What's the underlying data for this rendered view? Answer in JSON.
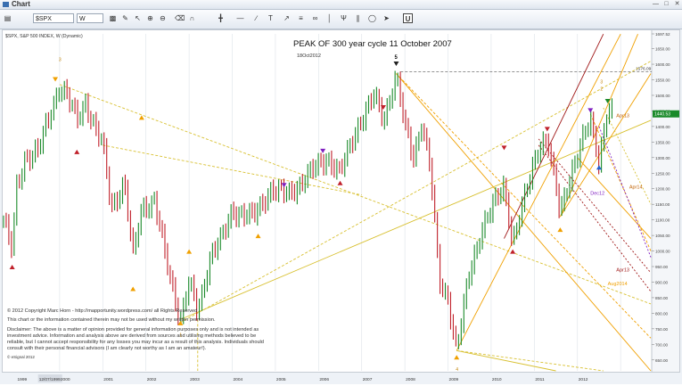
{
  "window": {
    "title": "Chart",
    "controls": [
      "minimize-icon",
      "maximize-icon",
      "close-icon"
    ]
  },
  "toolbar": {
    "symbol_value": "$SPX",
    "period_value": "W",
    "highlighted_tool": "U"
  },
  "chart_header": {
    "instrument": "$SPX, S&P 500 INDEX, W (Dynamic)",
    "headline": "PEAK OF 300 year cycle 11 October 2007",
    "subnote": "18Oct2012",
    "price_tag": "1440.53"
  },
  "axis_labels": {
    "peak_marker": "5",
    "resistance_level": "1576.09"
  },
  "wave_labels": [
    "3",
    "1",
    "4",
    "2",
    "3"
  ],
  "annotations": [
    "Apr13",
    "Dec12",
    "Apr14",
    "Apr13",
    "Aug2014"
  ],
  "info_text": {
    "copyright": "© 2012 Copyright Marc Horn - http://mapportunity.wordpress.com/ all Rights Reserved",
    "usage": "This chart or the information contained therein may not be used without my written permission.",
    "disclaimer": "Disclaimer: The above is a matter of opinion provided for general information purposes only and is not intended as investment advice. Information and analysis above are derived from sources and utilising methods believed to be reliable, but I cannot accept responsibility for any losses you may incur as a result of this analysis. Individuals should consult with their personal financial advisors (I am clearly not worthy as I am an amateur!).",
    "watermark": "© eSignal 2012"
  },
  "colors": {
    "up_candle": "#1a8a2a",
    "down_candle": "#c0202a",
    "fork_orange": "#f0a000",
    "fork_yellow": "#d8c030",
    "fork_darkred": "#a01818",
    "fork_purple": "#8020c0"
  },
  "chart_data": {
    "type": "line",
    "title": "PEAK OF 300 year cycle 11 October 2007",
    "x": [
      "1999",
      "2000",
      "2001",
      "2002",
      "2003",
      "2004",
      "2005",
      "2006",
      "2007",
      "2008",
      "2009",
      "2010",
      "2011",
      "2012"
    ],
    "x_tick_labels": [
      "1999",
      "12/07/1999",
      "2000",
      "2001",
      "2002",
      "2003",
      "2004",
      "2005",
      "2006",
      "2007",
      "2008",
      "2009",
      "2010",
      "2011",
      "2012"
    ],
    "y_tick_labels": [
      "650.00",
      "700.00",
      "750.00",
      "800.00",
      "850.00",
      "900.00",
      "950.00",
      "1000.00",
      "1050.00",
      "1100.00",
      "1150.00",
      "1200.00",
      "1250.00",
      "1300.00",
      "1350.00",
      "1400.00",
      "1450.00",
      "1500.00",
      "1550.00",
      "1600.00",
      "1650.00",
      "1697.52"
    ],
    "ylim": [
      615,
      1697.52
    ],
    "price_path": [
      {
        "x": 1998.7,
        "y": 1100
      },
      {
        "x": 1998.9,
        "y": 1000
      },
      {
        "x": 1999.0,
        "y": 1200
      },
      {
        "x": 1999.2,
        "y": 1300
      },
      {
        "x": 1999.5,
        "y": 1320
      },
      {
        "x": 1999.8,
        "y": 1450
      },
      {
        "x": 2000.0,
        "y": 1530
      },
      {
        "x": 2000.2,
        "y": 1490
      },
      {
        "x": 2000.4,
        "y": 1420
      },
      {
        "x": 2000.6,
        "y": 1480
      },
      {
        "x": 2000.8,
        "y": 1400
      },
      {
        "x": 2001.0,
        "y": 1340
      },
      {
        "x": 2001.2,
        "y": 1140
      },
      {
        "x": 2001.5,
        "y": 1220
      },
      {
        "x": 2001.7,
        "y": 980
      },
      {
        "x": 2001.9,
        "y": 1140
      },
      {
        "x": 2002.2,
        "y": 1160
      },
      {
        "x": 2002.5,
        "y": 950
      },
      {
        "x": 2002.8,
        "y": 780
      },
      {
        "x": 2003.0,
        "y": 900
      },
      {
        "x": 2003.2,
        "y": 800
      },
      {
        "x": 2003.5,
        "y": 990
      },
      {
        "x": 2003.8,
        "y": 1050
      },
      {
        "x": 2004.0,
        "y": 1130
      },
      {
        "x": 2004.5,
        "y": 1110
      },
      {
        "x": 2004.9,
        "y": 1200
      },
      {
        "x": 2005.3,
        "y": 1180
      },
      {
        "x": 2005.8,
        "y": 1250
      },
      {
        "x": 2006.2,
        "y": 1300
      },
      {
        "x": 2006.5,
        "y": 1250
      },
      {
        "x": 2006.9,
        "y": 1400
      },
      {
        "x": 2007.3,
        "y": 1500
      },
      {
        "x": 2007.5,
        "y": 1420
      },
      {
        "x": 2007.8,
        "y": 1565
      },
      {
        "x": 2008.0,
        "y": 1400
      },
      {
        "x": 2008.2,
        "y": 1300
      },
      {
        "x": 2008.4,
        "y": 1420
      },
      {
        "x": 2008.6,
        "y": 1250
      },
      {
        "x": 2008.8,
        "y": 900
      },
      {
        "x": 2009.0,
        "y": 850
      },
      {
        "x": 2009.2,
        "y": 680
      },
      {
        "x": 2009.5,
        "y": 930
      },
      {
        "x": 2009.8,
        "y": 1080
      },
      {
        "x": 2010.3,
        "y": 1210
      },
      {
        "x": 2010.5,
        "y": 1030
      },
      {
        "x": 2010.8,
        "y": 1180
      },
      {
        "x": 2011.1,
        "y": 1340
      },
      {
        "x": 2011.3,
        "y": 1360
      },
      {
        "x": 2011.6,
        "y": 1120
      },
      {
        "x": 2011.8,
        "y": 1230
      },
      {
        "x": 2012.0,
        "y": 1310
      },
      {
        "x": 2012.3,
        "y": 1420
      },
      {
        "x": 2012.5,
        "y": 1290
      },
      {
        "x": 2012.7,
        "y": 1460
      },
      {
        "x": 2012.8,
        "y": 1440
      }
    ],
    "last_price": 1440.53,
    "reference_level": 1576.09
  }
}
